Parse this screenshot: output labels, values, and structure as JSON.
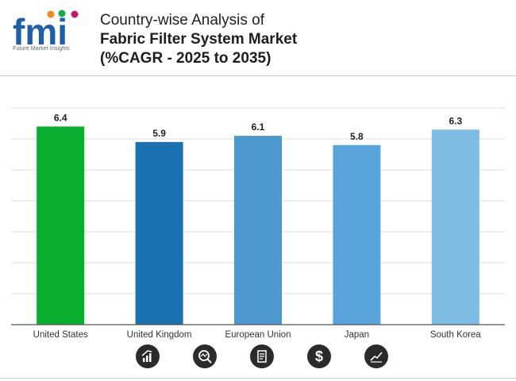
{
  "header": {
    "logo_text": "fmi",
    "logo_subtitle": "Future Market Insights",
    "title_line1": "Country-wise Analysis of",
    "title_line2": "Fabric Filter System Market",
    "title_line3": "(%CAGR - 2025 to 2035)"
  },
  "colors": {
    "us": "#0aae2e",
    "uk": "#1a72b0",
    "eu": "#4e98d0",
    "japan": "#5aa4dc",
    "sk": "#7fbce4",
    "grid": "#dcdcdc",
    "axis": "#555555"
  },
  "chart_data": {
    "type": "bar",
    "title": "Country-wise Analysis of Fabric Filter System Market (%CAGR - 2025 to 2035)",
    "categories": [
      "United States",
      "United Kingdom",
      "European Union",
      "Japan",
      "South Korea"
    ],
    "values": [
      6.4,
      5.9,
      6.1,
      5.8,
      6.3
    ],
    "value_labels": [
      "6.4",
      "5.9",
      "6.1",
      "5.8",
      "6.3"
    ],
    "xlabel": "",
    "ylabel": "",
    "ylim": [
      0,
      7
    ],
    "grid": true,
    "legend": "none"
  },
  "footer_icons": [
    "growth-chart-icon",
    "analysis-magnifier-icon",
    "document-report-icon",
    "dollar-icon",
    "trend-line-icon"
  ]
}
